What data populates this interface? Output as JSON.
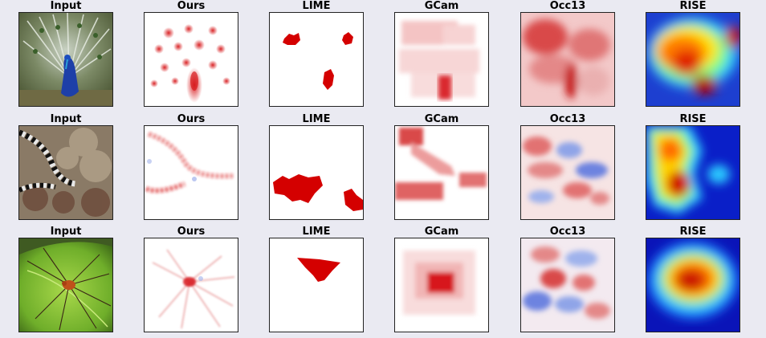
{
  "figure": {
    "rows": [
      {
        "titles": [
          "Input",
          "Ours",
          "LIME",
          "GCam",
          "Occ13",
          "RISE"
        ]
      },
      {
        "titles": [
          "Input",
          "Ours",
          "LIME",
          "GCam",
          "Occ13",
          "RISE"
        ]
      },
      {
        "titles": [
          "Input",
          "Ours",
          "LIME",
          "GCam",
          "Occ13",
          "RISE"
        ]
      }
    ]
  },
  "colors": {
    "background": "#eaeaf2",
    "heat_red": "#d7191c",
    "heat_blue": "#3b4cc0",
    "lime_red": "#d40000",
    "jet_dark_red": "#800000",
    "jet_blue": "#0000cc"
  }
}
